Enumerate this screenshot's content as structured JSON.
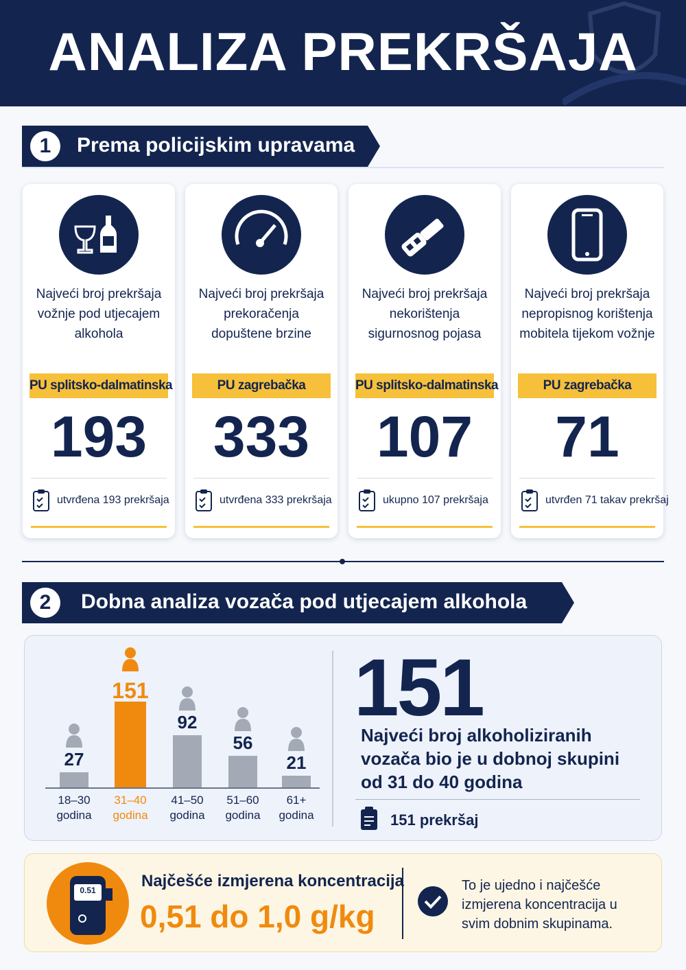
{
  "header": {
    "title": "ANALIZA PREKRŠAJA"
  },
  "section1": {
    "number": "1",
    "title": "Prema policijskim upravama",
    "cards": [
      {
        "description": "Najveći broj prekršaja vožnje pod utjecajem alkohola",
        "unit": "PU splitsko-dalmatinska",
        "value": 193,
        "note": "utvrđena 193 prekršaja"
      },
      {
        "description": "Najveći broj prekršaja prekoračenja dopuštene brzine",
        "unit": "PU zagrebačka",
        "value": 333,
        "note": "utvrđena 333 prekršaja"
      },
      {
        "description": "Najveći broj prekršaja nekorištenja sigurnosnog pojasa",
        "unit": "PU splitsko-dalmatinska",
        "value": 107,
        "note": "ukupno 107 prekršaja"
      },
      {
        "description": "Najveći broj prekršaja nepropisnog korištenja mobitela tijekom vožnje",
        "unit": "PU zagrebačka",
        "value": 71,
        "note": "utvrđen 71 takav prekršaj"
      }
    ]
  },
  "section2": {
    "number": "2",
    "title": "Dobna analiza vozača pod utjecajem alkohola",
    "chart_data": {
      "type": "bar",
      "categories": [
        "18–30 godina",
        "31–40 godina",
        "41–50 godina",
        "51–60 godina",
        "61+ godina"
      ],
      "values": [
        27,
        151,
        92,
        56,
        21
      ],
      "colors": [
        "#a3aab5",
        "#f08a0e",
        "#a3aab5",
        "#a3aab5",
        "#a3aab5"
      ]
    },
    "highlight_value": 151,
    "highlight_text": "Najveći broj alkoholiziranih vozača bio je u dobnoj skupini od 31 do 40 godina",
    "highlight_note": "151 prekršaj"
  },
  "section3": {
    "device_display": "0.51",
    "heading": "Najčešće izmjerena koncentracija",
    "value": "0,51 do 1,0 g/kg",
    "note": "To je ujedno i najčešće izmjerena koncentracija u svim dobnim skupinama."
  }
}
